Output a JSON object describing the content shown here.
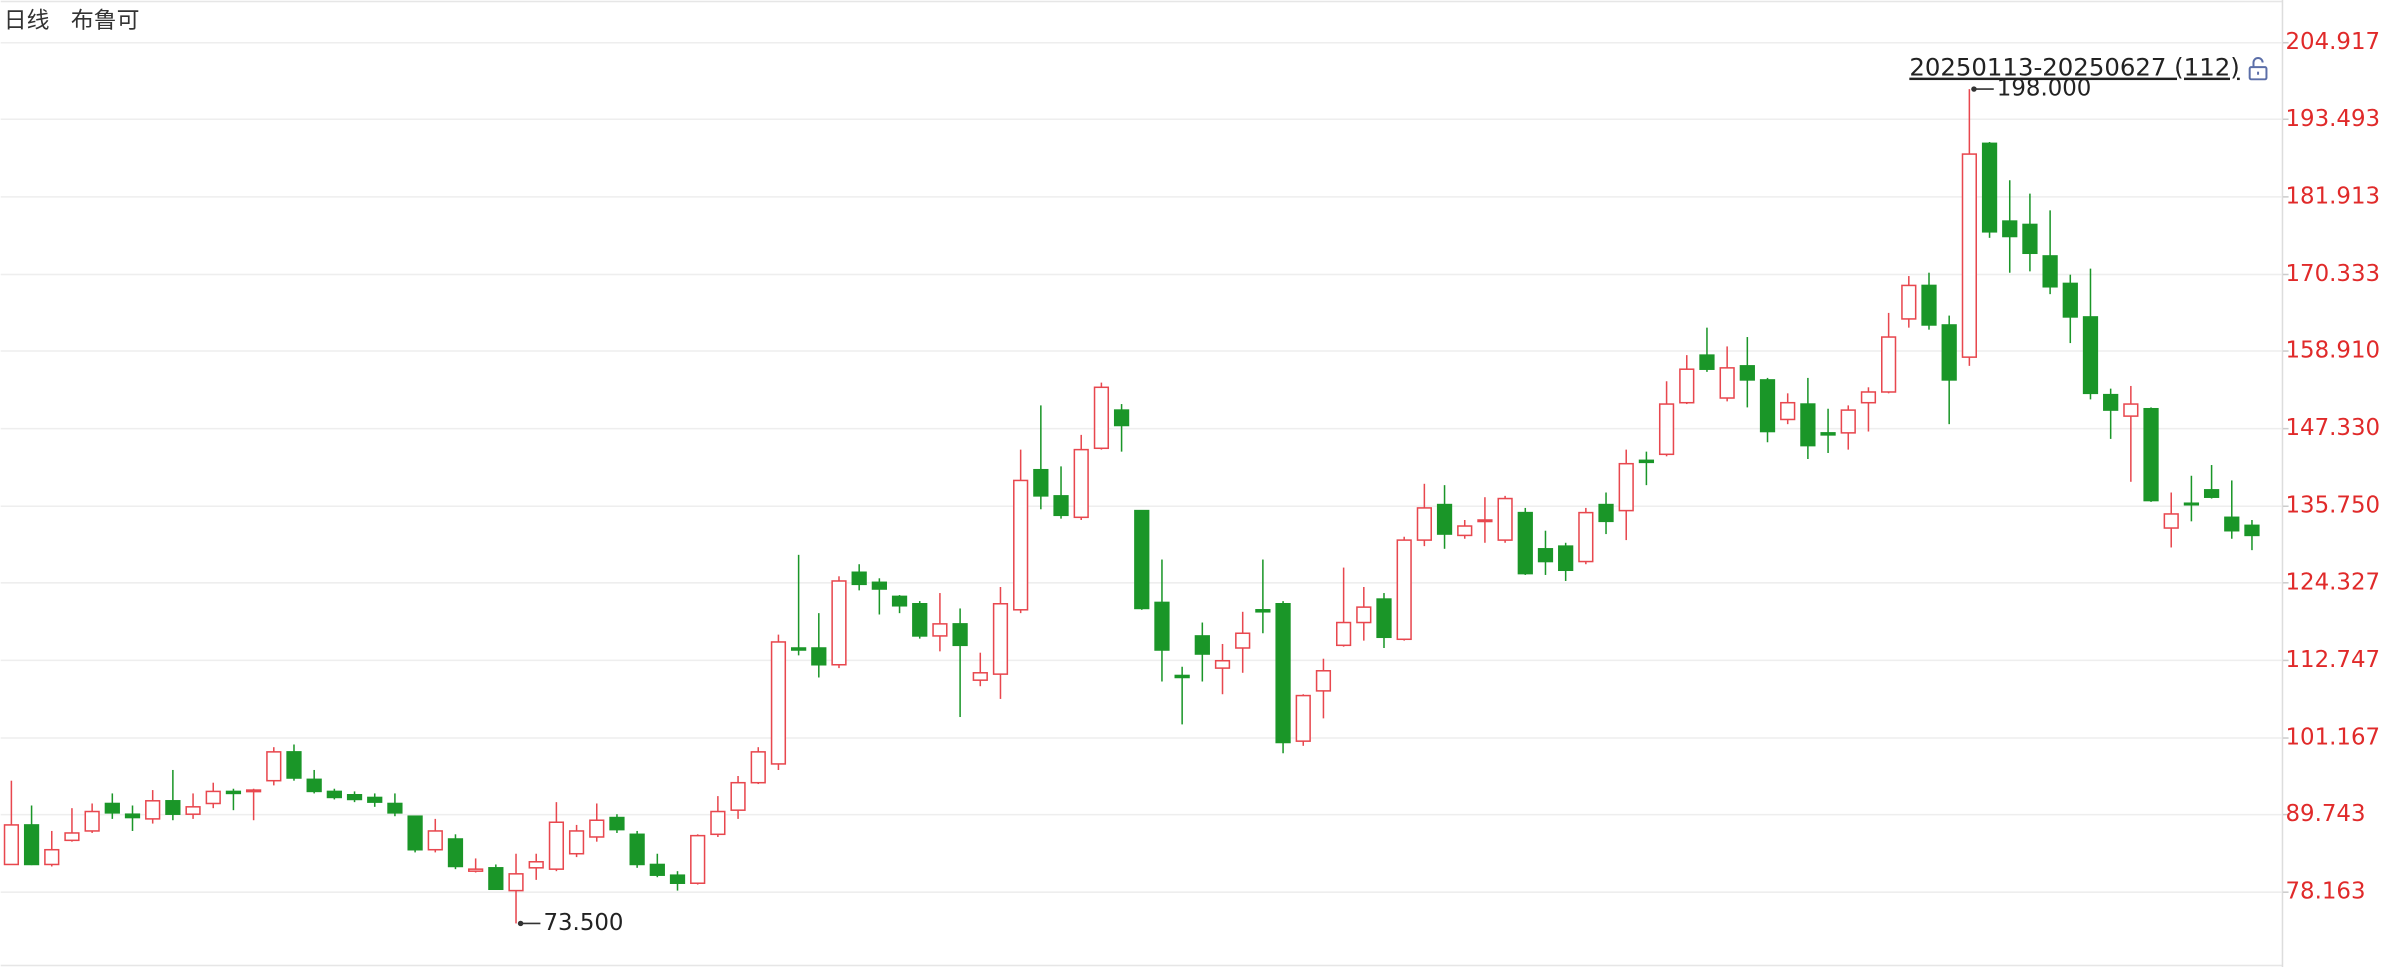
{
  "chart_data": {
    "type": "candlestick",
    "title": "日线",
    "subtitle": "布鲁可",
    "range_label": "20250113-20250627 (112)",
    "up_color": "#e8474e",
    "down_color": "#1a9628",
    "grid": true,
    "ylim": [
      67.0,
      211.29
    ],
    "yticks": [
      78.163,
      89.743,
      101.167,
      112.747,
      124.327,
      {
        "value": 135.75,
        "label": "135.750"
      },
      {
        "value": 147.33,
        "label": "147.330"
      },
      {
        "value": 158.91,
        "label": "158.910"
      },
      170.333,
      181.913,
      193.493,
      204.917
    ],
    "annotations": [
      {
        "value": 198,
        "label": "198.000"
      },
      {
        "value": 73.5,
        "label": "73.500"
      }
    ],
    "open": [
      82.3,
      88.2,
      82.3,
      85.9,
      87.3,
      91.4,
      89.8,
      89.1,
      91.8,
      89.8,
      91.4,
      93.2,
      93.2,
      94.8,
      99.1,
      95.0,
      93.2,
      92.7,
      92.3,
      91.4,
      89.5,
      84.5,
      86.1,
      81.3,
      81.8,
      78.4,
      81.8,
      81.6,
      83.9,
      86.4,
      89.3,
      86.8,
      82.3,
      80.7,
      79.5,
      86.8,
      90.4,
      94.5,
      97.3,
      114.6,
      114.6,
      112.1,
      125.9,
      124.4,
      122.3,
      121.2,
      116.4,
      118.2,
      109.8,
      110.7,
      120.3,
      141.2,
      137.3,
      134.1,
      144.4,
      150.1,
      135.1,
      121.4,
      110.5,
      116.4,
      111.6,
      114.6,
      120.3,
      121.2,
      100.7,
      108.2,
      115.0,
      118.4,
      121.9,
      115.9,
      130.7,
      136.0,
      131.4,
      133.5,
      130.7,
      134.8,
      129.4,
      129.8,
      127.5,
      136.0,
      135.1,
      142.6,
      143.5,
      151.2,
      158.3,
      151.9,
      156.7,
      154.6,
      148.7,
      151.0,
      146.7,
      146.7,
      151.2,
      152.8,
      163.7,
      168.7,
      162.8,
      158.0,
      189.9,
      178.3,
      177.8,
      173.1,
      169.0,
      164.0,
      152.4,
      149.2,
      150.3,
      132.5,
      136.2,
      138.2,
      134.1,
      132.9
    ],
    "high": [
      94.8,
      91.1,
      87.3,
      90.7,
      91.4,
      92.9,
      91.1,
      93.4,
      96.4,
      92.9,
      94.5,
      93.6,
      93.6,
      99.8,
      100.2,
      96.4,
      93.6,
      93.2,
      92.9,
      92.9,
      89.5,
      89.1,
      86.8,
      83.2,
      82.3,
      83.9,
      83.9,
      91.6,
      88.2,
      91.4,
      89.8,
      87.3,
      83.9,
      81.3,
      86.8,
      92.5,
      95.5,
      99.8,
      116.6,
      128.5,
      119.8,
      125.3,
      127.1,
      125.0,
      122.5,
      121.6,
      122.8,
      120.5,
      113.9,
      123.7,
      144.2,
      150.8,
      141.7,
      146.4,
      154.2,
      151.0,
      135.1,
      127.8,
      111.8,
      118.4,
      115.2,
      120.0,
      127.8,
      121.6,
      107.7,
      113.0,
      126.6,
      123.7,
      122.8,
      131.2,
      139.1,
      138.9,
      133.7,
      137.1,
      137.3,
      135.5,
      132.1,
      130.3,
      135.5,
      137.8,
      144.2,
      143.9,
      154.4,
      158.3,
      162.4,
      159.6,
      161.0,
      154.9,
      152.6,
      154.9,
      150.3,
      150.8,
      153.5,
      164.6,
      170.1,
      170.6,
      164.2,
      198,
      190.1,
      184.4,
      182.4,
      179.9,
      170.3,
      171.2,
      153.3,
      153.7,
      150.5,
      137.8,
      140.3,
      141.9,
      139.6,
      133.7
    ],
    "low": [
      82.3,
      82.2,
      82.0,
      85.7,
      87.0,
      89.1,
      87.3,
      88.4,
      88.9,
      89.1,
      90.7,
      90.4,
      88.9,
      94.1,
      94.8,
      92.9,
      92.0,
      91.6,
      90.9,
      89.5,
      84.1,
      84.1,
      81.6,
      81.1,
      78.6,
      73.5,
      80.0,
      81.3,
      83.4,
      85.7,
      87.0,
      81.8,
      80.4,
      78.4,
      79.3,
      86.4,
      89.1,
      94.3,
      96.4,
      113.5,
      110.2,
      111.6,
      123.2,
      119.6,
      119.8,
      116.0,
      114.1,
      104.3,
      108.9,
      107.0,
      119.8,
      135.3,
      133.9,
      133.7,
      144.2,
      143.9,
      120.3,
      109.6,
      103.2,
      109.6,
      107.7,
      110.9,
      116.8,
      98.9,
      100.0,
      104.1,
      114.8,
      115.7,
      114.6,
      115.7,
      129.8,
      129.4,
      130.9,
      130.3,
      130.3,
      125.5,
      125.5,
      124.6,
      127.1,
      131.6,
      130.7,
      138.9,
      143.2,
      151.0,
      155.8,
      151.4,
      150.5,
      145.3,
      148.0,
      142.8,
      143.7,
      144.2,
      146.9,
      152.6,
      162.4,
      162.1,
      148.0,
      156.7,
      175.8,
      170.6,
      170.8,
      167.4,
      160.1,
      151.7,
      145.8,
      139.4,
      136.4,
      129.6,
      133.5,
      136.9,
      130.9,
      129.2
    ],
    "close": [
      88.2,
      82.3,
      84.5,
      87.0,
      90.2,
      90.0,
      89.3,
      91.8,
      89.8,
      90.9,
      93.2,
      92.9,
      93.4,
      99.1,
      95.2,
      93.2,
      92.3,
      92.0,
      91.6,
      90.0,
      84.5,
      87.3,
      82.0,
      81.6,
      78.6,
      80.9,
      82.7,
      88.6,
      87.3,
      88.9,
      87.5,
      82.3,
      80.7,
      79.5,
      86.6,
      90.2,
      94.5,
      99.1,
      115.5,
      114.3,
      112.1,
      124.6,
      124.1,
      123.4,
      120.9,
      116.4,
      118.2,
      115.0,
      110.9,
      121.2,
      139.6,
      137.3,
      134.4,
      144.2,
      153.5,
      147.8,
      120.5,
      114.3,
      110.2,
      113.7,
      112.7,
      116.8,
      120.0,
      100.5,
      107.5,
      111.2,
      118.4,
      120.7,
      116.2,
      130.7,
      135.5,
      131.6,
      132.8,
      133.7,
      136.9,
      125.7,
      127.5,
      126.2,
      134.8,
      133.5,
      142.1,
      142.3,
      151.0,
      156.2,
      156.2,
      156.4,
      154.6,
      146.9,
      151.2,
      144.8,
      146.4,
      150.1,
      152.8,
      161.0,
      168.7,
      162.8,
      154.6,
      188.3,
      176.7,
      176.0,
      173.5,
      168.5,
      164.0,
      152.6,
      150.1,
      151.0,
      136.6,
      134.6,
      136.0,
      137.1,
      132.1,
      131.4
    ]
  }
}
